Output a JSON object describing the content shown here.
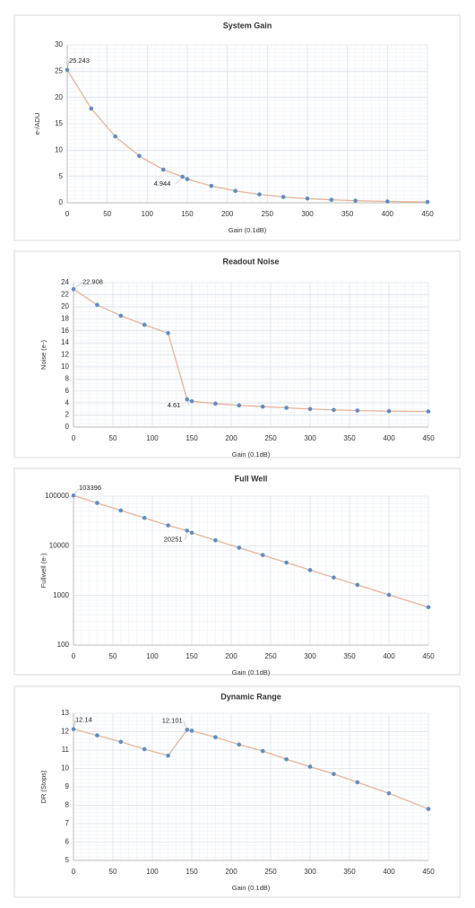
{
  "chart_data": [
    {
      "type": "line",
      "title": "System Gain",
      "x_label": "Gain (0.1dB)",
      "y_label": "e-/ADU",
      "x": [
        0,
        30,
        60,
        90,
        120,
        144,
        150,
        180,
        210,
        240,
        270,
        300,
        330,
        360,
        400,
        450
      ],
      "series": [
        {
          "name": "System Gain",
          "color": "#e8b49a",
          "marker_color": "#5b8ec9",
          "values": [
            25.243,
            17.9,
            12.6,
            8.9,
            6.3,
            4.944,
            4.5,
            3.2,
            2.25,
            1.6,
            1.1,
            0.8,
            0.56,
            0.4,
            0.25,
            0.14
          ],
          "value_labels": [
            "25.243",
            null,
            null,
            null,
            null,
            "4.944",
            null,
            null,
            null,
            null,
            null,
            null,
            null,
            null,
            null,
            null
          ]
        }
      ],
      "xlim": [
        0,
        450
      ],
      "xticks": [
        0,
        50,
        100,
        150,
        200,
        250,
        300,
        350,
        400,
        450
      ],
      "ylim": [
        0,
        30
      ],
      "yticks": [
        0,
        5,
        10,
        15,
        20,
        25,
        30
      ],
      "grid": true,
      "log_y": false
    },
    {
      "type": "line",
      "title": "Readout Noise",
      "x_label": "Gain (0.1dB)",
      "y_label": "Noise (e-)",
      "x": [
        0,
        30,
        60,
        90,
        120,
        144,
        150,
        180,
        210,
        240,
        270,
        300,
        330,
        360,
        400,
        450
      ],
      "series": [
        {
          "name": "Readout Noise",
          "color": "#e8b49a",
          "marker_color": "#5b8ec9",
          "values": [
            22.908,
            20.3,
            18.5,
            17.0,
            15.6,
            4.61,
            4.3,
            3.9,
            3.6,
            3.4,
            3.2,
            3.0,
            2.85,
            2.75,
            2.65,
            2.6
          ],
          "value_labels": [
            "22.908",
            null,
            null,
            null,
            null,
            "4.61",
            null,
            null,
            null,
            null,
            null,
            null,
            null,
            null,
            null,
            null
          ]
        }
      ],
      "xlim": [
        0,
        450
      ],
      "xticks": [
        0,
        50,
        100,
        150,
        200,
        250,
        300,
        350,
        400,
        450
      ],
      "ylim": [
        0,
        24
      ],
      "yticks": [
        0,
        2,
        4,
        6,
        8,
        10,
        12,
        14,
        16,
        18,
        20,
        22,
        24
      ],
      "grid": true,
      "log_y": false
    },
    {
      "type": "line",
      "title": "Full Well",
      "x_label": "Gain (0.1dB)",
      "y_label": "Fullwell (e-)",
      "x": [
        0,
        30,
        60,
        90,
        120,
        144,
        150,
        180,
        210,
        240,
        270,
        300,
        330,
        360,
        400,
        450
      ],
      "series": [
        {
          "name": "Full Well",
          "color": "#e8b49a",
          "marker_color": "#5b8ec9",
          "values": [
            103396,
            73000,
            51500,
            36500,
            25800,
            20251,
            18300,
            12900,
            9150,
            6500,
            4600,
            3250,
            2300,
            1630,
            1030,
            580
          ],
          "value_labels": [
            "103396",
            null,
            null,
            null,
            null,
            "20251",
            null,
            null,
            null,
            null,
            null,
            null,
            null,
            null,
            null,
            null
          ]
        }
      ],
      "xlim": [
        0,
        450
      ],
      "xticks": [
        0,
        50,
        100,
        150,
        200,
        250,
        300,
        350,
        400,
        450
      ],
      "ylim": [
        100,
        100000
      ],
      "yticks": [
        100,
        1000,
        10000,
        100000
      ],
      "grid": true,
      "log_y": true
    },
    {
      "type": "line",
      "title": "Dynamic Range",
      "x_label": "Gain (0.1dB)",
      "y_label": "DR (Stops)",
      "x": [
        0,
        30,
        60,
        90,
        120,
        144,
        150,
        180,
        210,
        240,
        270,
        300,
        330,
        360,
        400,
        450
      ],
      "series": [
        {
          "name": "Dynamic Range",
          "color": "#e8b49a",
          "marker_color": "#5b8ec9",
          "values": [
            12.14,
            11.8,
            11.45,
            11.05,
            10.7,
            12.101,
            12.05,
            11.7,
            11.3,
            10.95,
            10.5,
            10.1,
            9.7,
            9.25,
            8.65,
            7.8
          ],
          "value_labels": [
            "12.14",
            null,
            null,
            null,
            null,
            "12.101",
            null,
            null,
            null,
            null,
            null,
            null,
            null,
            null,
            null,
            null
          ]
        }
      ],
      "xlim": [
        0,
        450
      ],
      "xticks": [
        0,
        50,
        100,
        150,
        200,
        250,
        300,
        350,
        400,
        450
      ],
      "ylim": [
        5,
        13
      ],
      "yticks": [
        5,
        6,
        7,
        8,
        9,
        10,
        11,
        12,
        13
      ],
      "grid": true,
      "log_y": false
    }
  ]
}
